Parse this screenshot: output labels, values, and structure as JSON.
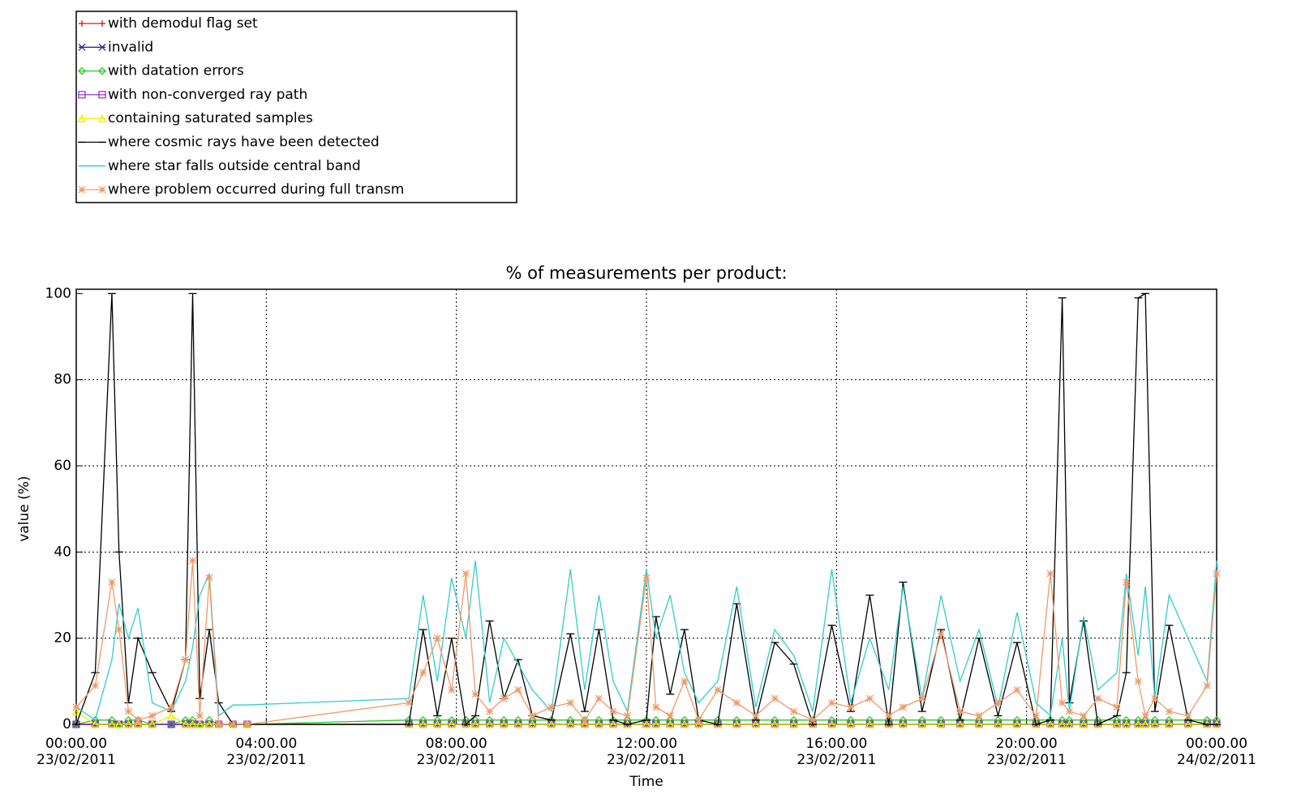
{
  "chart_data": {
    "type": "line",
    "title": "% of measurements per product:",
    "xlabel": "Time",
    "ylabel": "value (%)",
    "xlim": [
      0,
      24
    ],
    "ylim": [
      0,
      101
    ],
    "grid": true,
    "legend": "top-left",
    "xticks": [
      {
        "value": 0,
        "label": "00:00.00",
        "date": "23/02/2011"
      },
      {
        "value": 4,
        "label": "04:00.00",
        "date": "23/02/2011"
      },
      {
        "value": 8,
        "label": "08:00.00",
        "date": "23/02/2011"
      },
      {
        "value": 12,
        "label": "12:00.00",
        "date": "23/02/2011"
      },
      {
        "value": 16,
        "label": "16:00.00",
        "date": "23/02/2011"
      },
      {
        "value": 20,
        "label": "20:00.00",
        "date": "23/02/2011"
      },
      {
        "value": 24,
        "label": "00:00.00",
        "date": "24/02/2011"
      }
    ],
    "yticks": [
      0,
      20,
      40,
      60,
      80,
      100
    ],
    "x": [
      0,
      0.4,
      0.75,
      0.9,
      1.1,
      1.3,
      1.6,
      2.0,
      2.3,
      2.45,
      2.6,
      2.8,
      3.0,
      3.3,
      3.6,
      7.0,
      7.3,
      7.6,
      7.9,
      8.2,
      8.4,
      8.7,
      9.0,
      9.3,
      9.6,
      10.0,
      10.4,
      10.7,
      11.0,
      11.3,
      11.6,
      12.0,
      12.2,
      12.5,
      12.8,
      13.1,
      13.5,
      13.9,
      14.3,
      14.7,
      15.1,
      15.5,
      15.9,
      16.3,
      16.7,
      17.1,
      17.4,
      17.8,
      18.2,
      18.6,
      19.0,
      19.4,
      19.8,
      20.2,
      20.5,
      20.75,
      20.9,
      21.2,
      21.5,
      21.9,
      22.1,
      22.35,
      22.5,
      22.7,
      23.0,
      23.4,
      23.8,
      24.0
    ],
    "series": [
      {
        "name": "with demodul flag set",
        "color": "#cc2222",
        "marker": "plus",
        "values": [
          0,
          0,
          0,
          0,
          0,
          0,
          0,
          0,
          0,
          0,
          0,
          0,
          0,
          0,
          0,
          0,
          0,
          0,
          0,
          0,
          0,
          0,
          0,
          0,
          0,
          0,
          0,
          0,
          0,
          0,
          0,
          0,
          0,
          0,
          0,
          0,
          0,
          0,
          0,
          0,
          0,
          0,
          0,
          0,
          0,
          0,
          0,
          0,
          0,
          0,
          0,
          0,
          0,
          0,
          0,
          0,
          0,
          0,
          0,
          0,
          0,
          0,
          0,
          0,
          0,
          0,
          0,
          0
        ]
      },
      {
        "name": "invalid",
        "color": "#2a2a9a",
        "marker": "x",
        "values": [
          0,
          0,
          0,
          0,
          0,
          0,
          0,
          0,
          0,
          0,
          0,
          0,
          0,
          0,
          0,
          0,
          0,
          0,
          0,
          0,
          0,
          0,
          0,
          0,
          0,
          0,
          0,
          0,
          0,
          0,
          0,
          0,
          0,
          0,
          0,
          0,
          0,
          0,
          0,
          0,
          0,
          0,
          0,
          0,
          0,
          0,
          0,
          0,
          0,
          0,
          0,
          0,
          0,
          0,
          0,
          0,
          0,
          0,
          0,
          0,
          0,
          0,
          0,
          0,
          0,
          0,
          0,
          0
        ]
      },
      {
        "name": "with datation errors",
        "color": "#22cc22",
        "marker": "diamond",
        "values": [
          0,
          1,
          1,
          0,
          1,
          1,
          0,
          0,
          1,
          1,
          0,
          1,
          0,
          0,
          0,
          1,
          1,
          1,
          1,
          1,
          1,
          1,
          1,
          1,
          1,
          1,
          1,
          1,
          1,
          1,
          1,
          1,
          1,
          1,
          1,
          1,
          1,
          1,
          1,
          1,
          1,
          1,
          1,
          1,
          1,
          1,
          1,
          1,
          1,
          1,
          1,
          1,
          1,
          1,
          1,
          1,
          1,
          1,
          1,
          1,
          1,
          1,
          1,
          1,
          1,
          1,
          1,
          1
        ]
      },
      {
        "name": "with non-converged ray path",
        "color": "#9933cc",
        "marker": "square",
        "values": [
          0,
          0,
          0,
          0,
          0,
          0,
          0,
          0,
          0,
          0,
          0,
          0,
          0,
          0,
          0,
          0,
          0,
          0,
          0,
          0,
          0,
          0,
          0,
          0,
          0,
          0,
          0,
          0,
          0,
          0,
          0,
          0,
          0,
          0,
          0,
          0,
          0,
          0,
          0,
          0,
          0,
          0,
          0,
          0,
          0,
          0,
          0,
          0,
          0,
          0,
          0,
          0,
          0,
          0,
          0,
          0,
          0,
          0,
          0,
          0,
          0,
          0,
          0,
          0,
          0,
          0,
          0,
          0
        ]
      },
      {
        "name": "containing saturated samples",
        "color": "#f0f000",
        "marker": "triangle",
        "values": [
          3,
          0,
          0,
          0,
          0,
          0,
          0,
          2,
          0,
          0,
          0,
          0,
          0,
          0,
          0,
          0,
          0,
          0,
          0,
          0,
          0,
          0,
          0,
          0,
          0,
          0,
          0,
          0,
          0,
          0,
          0,
          0,
          0,
          0,
          0,
          0,
          0,
          0,
          0,
          0,
          0,
          0,
          0,
          0,
          0,
          0,
          0,
          0,
          0,
          0,
          0,
          0,
          0,
          0,
          0,
          0,
          0,
          0,
          0,
          0,
          0,
          0,
          0,
          0,
          0,
          0,
          0,
          0
        ]
      },
      {
        "name": "where cosmic rays have been detected",
        "color": "#000000",
        "marker": "hbar",
        "values": [
          0,
          12,
          100,
          40,
          5,
          20,
          12,
          3,
          15,
          100,
          6,
          22,
          5,
          0,
          0,
          0,
          22,
          2,
          20,
          0,
          2,
          24,
          6,
          15,
          2,
          1,
          21,
          3,
          22,
          1,
          0,
          1,
          25,
          7,
          22,
          1,
          0,
          28,
          1,
          19,
          14,
          0,
          23,
          3,
          30,
          0,
          33,
          3,
          22,
          1,
          20,
          2,
          19,
          0,
          1,
          99,
          5,
          24,
          0,
          2,
          12,
          99,
          100,
          3,
          23,
          1,
          0,
          0
        ]
      },
      {
        "name": "where star falls outside central band",
        "color": "#33cccc",
        "marker": "none",
        "values": [
          4,
          1,
          15,
          28,
          20,
          27,
          5,
          3,
          10,
          18,
          30,
          35,
          2,
          4.5,
          4.5,
          6,
          30,
          10,
          34,
          20,
          38,
          5,
          20,
          14,
          8,
          3,
          36,
          8,
          30,
          10,
          3,
          36,
          20,
          30,
          12,
          5,
          10,
          32,
          4,
          22,
          16,
          3,
          36,
          5,
          20,
          8,
          32,
          6,
          30,
          10,
          22,
          4,
          26,
          5,
          2,
          20,
          3,
          25,
          8,
          12,
          35,
          16,
          32,
          6,
          30,
          20,
          10,
          38
        ]
      },
      {
        "name": "where problem occurred during full transm",
        "color": "#f09a6a",
        "marker": "asterisk",
        "values": [
          4,
          9,
          33,
          22,
          3,
          1,
          2,
          4,
          15,
          38,
          2,
          34,
          0,
          0,
          0,
          5,
          12,
          20,
          8,
          35,
          7,
          3,
          6,
          8,
          2,
          4,
          5,
          1,
          6,
          3,
          2,
          34,
          4,
          2,
          10,
          1,
          8,
          5,
          2,
          6,
          3,
          1,
          5,
          4,
          6,
          2,
          4,
          6,
          21,
          3,
          2,
          5,
          8,
          2,
          35,
          5,
          3,
          2,
          6,
          4,
          33,
          10,
          2,
          6,
          3,
          2,
          9,
          35
        ]
      }
    ]
  }
}
